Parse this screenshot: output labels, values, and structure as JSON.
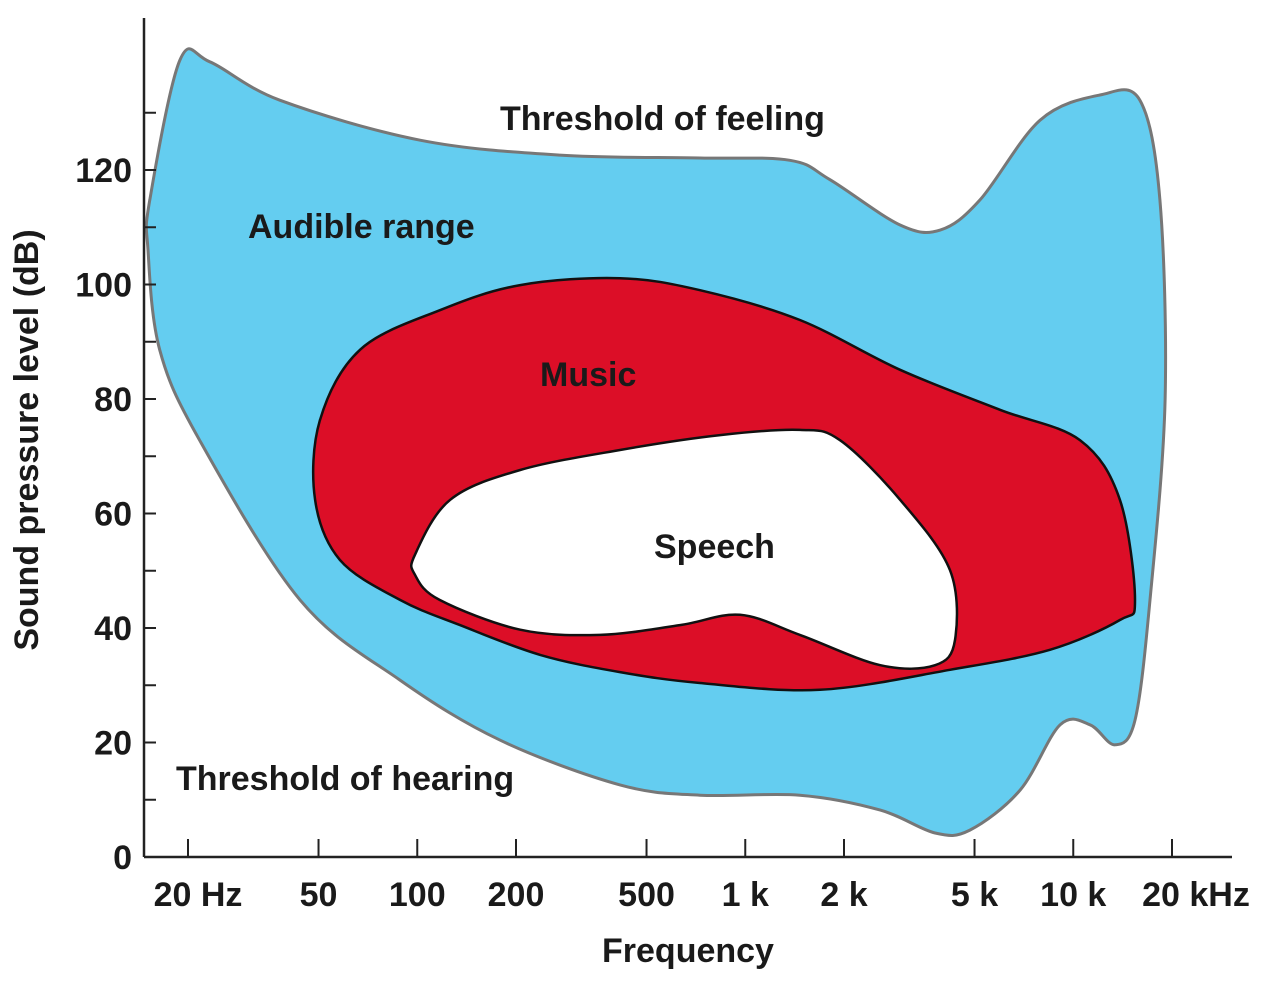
{
  "chart_data": {
    "type": "area",
    "title": "",
    "xlabel": "Frequency",
    "ylabel": "Sound pressure level (dB)",
    "x_scale": "log",
    "xlim_hz": [
      15,
      20000
    ],
    "ylim": [
      0,
      130
    ],
    "x_ticks": [
      {
        "value": 20,
        "label": "20 Hz"
      },
      {
        "value": 50,
        "label": "50"
      },
      {
        "value": 100,
        "label": "100"
      },
      {
        "value": 200,
        "label": "200"
      },
      {
        "value": 500,
        "label": "500"
      },
      {
        "value": 1000,
        "label": "1 k"
      },
      {
        "value": 2000,
        "label": "2 k"
      },
      {
        "value": 5000,
        "label": "5 k"
      },
      {
        "value": 10000,
        "label": "10 k"
      },
      {
        "value": 20000,
        "label": "20 kHz"
      }
    ],
    "y_ticks": [
      {
        "value": 0,
        "label": "0"
      },
      {
        "value": 20,
        "label": "20"
      },
      {
        "value": 40,
        "label": "40"
      },
      {
        "value": 60,
        "label": "60"
      },
      {
        "value": 80,
        "label": "80"
      },
      {
        "value": 100,
        "label": "100"
      },
      {
        "value": 120,
        "label": "120"
      }
    ],
    "regions": [
      {
        "name": "Audible range",
        "color": "#64CDF0",
        "points": [
          [
            15.3,
            114.8
          ],
          [
            18.9,
            139.2
          ],
          [
            23.3,
            138.9
          ],
          [
            38.1,
            132.2
          ],
          [
            102,
            125.2
          ],
          [
            272,
            122.6
          ],
          [
            728,
            122.1
          ],
          [
            1368,
            121.7
          ],
          [
            1813,
            118.3
          ],
          [
            2965,
            110.4
          ],
          [
            3930,
            109.5
          ],
          [
            5200,
            114.8
          ],
          [
            7920,
            128.7
          ],
          [
            12060,
            133.1
          ],
          [
            15960,
            132.2
          ],
          [
            18370,
            114.8
          ],
          [
            19050,
            79.8
          ],
          [
            17140,
            44.9
          ],
          [
            15420,
            23.9
          ],
          [
            13400,
            19.6
          ],
          [
            11250,
            23.1
          ],
          [
            9120,
            23.1
          ],
          [
            6890,
            11.7
          ],
          [
            4840,
            4.7
          ],
          [
            3790,
            4.2
          ],
          [
            2580,
            8.2
          ],
          [
            1468,
            10.8
          ],
          [
            728,
            10.8
          ],
          [
            415,
            12.6
          ],
          [
            179,
            20.4
          ],
          [
            88.6,
            30.9
          ],
          [
            43.9,
            44.9
          ],
          [
            21.7,
            72.8
          ],
          [
            16.4,
            88.6
          ],
          [
            15.1,
            106.1
          ]
        ]
      },
      {
        "name": "Music",
        "color": "#DC0E27",
        "points": [
          [
            50.5,
            76.3
          ],
          [
            66.9,
            88.6
          ],
          [
            117,
            95.5
          ],
          [
            206,
            99.9
          ],
          [
            415,
            101.1
          ],
          [
            728,
            99.0
          ],
          [
            1468,
            93.8
          ],
          [
            2965,
            85.1
          ],
          [
            5990,
            78.1
          ],
          [
            10490,
            72.8
          ],
          [
            13870,
            62.4
          ],
          [
            15420,
            44.9
          ],
          [
            13870,
            41.4
          ],
          [
            8490,
            36.2
          ],
          [
            4210,
            32.7
          ],
          [
            1690,
            29.2
          ],
          [
            728,
            30.4
          ],
          [
            415,
            32.3
          ],
          [
            237,
            35.3
          ],
          [
            135,
            40.5
          ],
          [
            88.6,
            44.9
          ],
          [
            58.1,
            51.9
          ],
          [
            48.8,
            62.4
          ]
        ]
      },
      {
        "name": "Speech",
        "color": "#FFFFFF",
        "points": [
          [
            98.4,
            52.8
          ],
          [
            126,
            62.4
          ],
          [
            206,
            67.6
          ],
          [
            415,
            71.1
          ],
          [
            838,
            73.7
          ],
          [
            1468,
            74.6
          ],
          [
            1945,
            72.8
          ],
          [
            2965,
            62.4
          ],
          [
            4210,
            50.1
          ],
          [
            4360,
            37.9
          ],
          [
            3790,
            33.5
          ],
          [
            2580,
            33.5
          ],
          [
            1468,
            38.8
          ],
          [
            964,
            42.3
          ],
          [
            632,
            40.5
          ],
          [
            361,
            38.8
          ],
          [
            206,
            39.7
          ],
          [
            117,
            44.9
          ],
          [
            98.4,
            49.3
          ]
        ]
      }
    ],
    "annotations": [
      {
        "text": "Threshold of feeling"
      },
      {
        "text": "Audible range"
      },
      {
        "text": "Music"
      },
      {
        "text": "Speech"
      },
      {
        "text": "Threshold of hearing"
      }
    ]
  }
}
